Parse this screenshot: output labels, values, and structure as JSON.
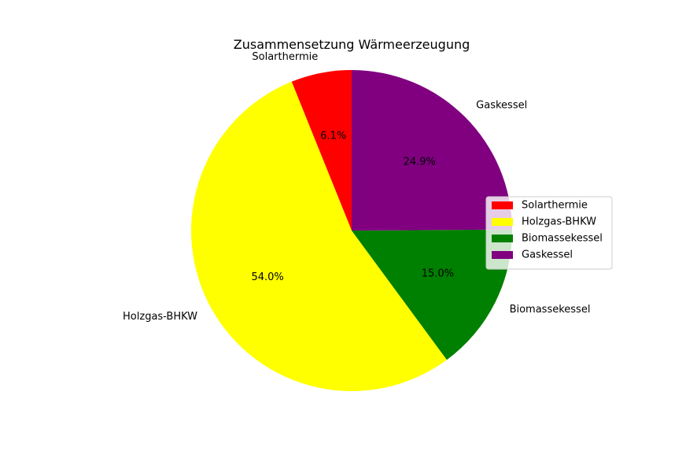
{
  "chart_data": {
    "type": "pie",
    "title": "Zusammensetzung Wärmeerzeugung",
    "start_angle_deg": 90,
    "direction": "counterclockwise",
    "slices": [
      {
        "label": "Solarthermie",
        "value": 6.1,
        "pct_label": "6.1%",
        "color": "#ff0000"
      },
      {
        "label": "Holzgas-BHKW",
        "value": 54.0,
        "pct_label": "54.0%",
        "color": "#ffff00"
      },
      {
        "label": "Biomassekessel",
        "value": 15.0,
        "pct_label": "15.0%",
        "color": "#008000"
      },
      {
        "label": "Gaskessel",
        "value": 24.9,
        "pct_label": "24.9%",
        "color": "#800080"
      }
    ],
    "legend": {
      "placement": "right",
      "entries": [
        "Solarthermie",
        "Holzgas-BHKW",
        "Biomassekessel",
        "Gaskessel"
      ]
    }
  }
}
